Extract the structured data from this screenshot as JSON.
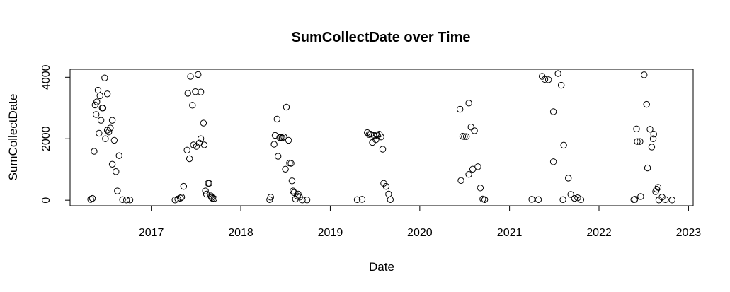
{
  "chart_data": {
    "type": "scatter",
    "title": "SumCollectDate over Time",
    "xlabel": "Date",
    "ylabel": "SumCollectDate",
    "xlim": [
      "2016-02-05",
      "2023-01-20"
    ],
    "ylim": [
      -180,
      4260
    ],
    "x_ticks": [
      "2017-01-01",
      "2018-01-01",
      "2019-01-01",
      "2020-01-01",
      "2021-01-01",
      "2022-01-01",
      "2023-01-01"
    ],
    "x_tick_labels": [
      "2017",
      "2018",
      "2019",
      "2020",
      "2021",
      "2022",
      "2023"
    ],
    "y_ticks": [
      0,
      2000,
      4000
    ],
    "y_tick_labels": [
      "0",
      "2000",
      "4000"
    ],
    "grid": false,
    "points": [
      [
        "2016-04-29",
        30
      ],
      [
        "2016-05-06",
        60
      ],
      [
        "2016-05-13",
        1590
      ],
      [
        "2016-05-17",
        3100
      ],
      [
        "2016-05-21",
        2790
      ],
      [
        "2016-05-24",
        3200
      ],
      [
        "2016-05-29",
        3580
      ],
      [
        "2016-06-02",
        2180
      ],
      [
        "2016-06-06",
        3400
      ],
      [
        "2016-06-10",
        2600
      ],
      [
        "2016-06-15",
        3000
      ],
      [
        "2016-06-18",
        3000
      ],
      [
        "2016-06-25",
        3980
      ],
      [
        "2016-06-28",
        2000
      ],
      [
        "2016-07-06",
        3460
      ],
      [
        "2016-07-06",
        2280
      ],
      [
        "2016-07-12",
        2220
      ],
      [
        "2016-07-18",
        2350
      ],
      [
        "2016-07-26",
        2600
      ],
      [
        "2016-07-26",
        1170
      ],
      [
        "2016-08-03",
        1950
      ],
      [
        "2016-08-10",
        930
      ],
      [
        "2016-08-16",
        300
      ],
      [
        "2016-08-23",
        1450
      ],
      [
        "2016-09-06",
        20
      ],
      [
        "2016-09-22",
        10
      ],
      [
        "2016-10-06",
        10
      ],
      [
        "2017-04-08",
        10
      ],
      [
        "2017-04-19",
        40
      ],
      [
        "2017-04-30",
        70
      ],
      [
        "2017-05-05",
        100
      ],
      [
        "2017-05-13",
        450
      ],
      [
        "2017-05-27",
        1630
      ],
      [
        "2017-05-30",
        3480
      ],
      [
        "2017-06-06",
        1350
      ],
      [
        "2017-06-10",
        4030
      ],
      [
        "2017-06-18",
        3090
      ],
      [
        "2017-06-22",
        1800
      ],
      [
        "2017-06-30",
        3530
      ],
      [
        "2017-07-04",
        1750
      ],
      [
        "2017-07-11",
        4090
      ],
      [
        "2017-07-16",
        1860
      ],
      [
        "2017-07-22",
        3520
      ],
      [
        "2017-07-22",
        2000
      ],
      [
        "2017-08-02",
        2510
      ],
      [
        "2017-08-05",
        1800
      ],
      [
        "2017-08-10",
        300
      ],
      [
        "2017-08-14",
        200
      ],
      [
        "2017-08-21",
        550
      ],
      [
        "2017-08-25",
        550
      ],
      [
        "2017-09-01",
        140
      ],
      [
        "2017-09-04",
        90
      ],
      [
        "2017-09-08",
        60
      ],
      [
        "2017-09-14",
        50
      ],
      [
        "2018-04-29",
        20
      ],
      [
        "2018-05-03",
        100
      ],
      [
        "2018-05-17",
        1820
      ],
      [
        "2018-05-21",
        2110
      ],
      [
        "2018-05-29",
        2640
      ],
      [
        "2018-06-02",
        1430
      ],
      [
        "2018-06-09",
        2040
      ],
      [
        "2018-06-14",
        2050
      ],
      [
        "2018-06-19",
        2030
      ],
      [
        "2018-06-26",
        2060
      ],
      [
        "2018-07-02",
        1010
      ],
      [
        "2018-07-06",
        3030
      ],
      [
        "2018-07-15",
        1950
      ],
      [
        "2018-07-19",
        1210
      ],
      [
        "2018-07-25",
        1200
      ],
      [
        "2018-07-29",
        630
      ],
      [
        "2018-08-02",
        300
      ],
      [
        "2018-08-06",
        250
      ],
      [
        "2018-08-12",
        40
      ],
      [
        "2018-08-19",
        140
      ],
      [
        "2018-08-23",
        200
      ],
      [
        "2018-08-29",
        100
      ],
      [
        "2018-09-09",
        10
      ],
      [
        "2018-09-28",
        10
      ],
      [
        "2019-04-21",
        20
      ],
      [
        "2019-05-11",
        30
      ],
      [
        "2019-06-01",
        2200
      ],
      [
        "2019-06-08",
        2140
      ],
      [
        "2019-06-15",
        2150
      ],
      [
        "2019-06-22",
        1880
      ],
      [
        "2019-06-29",
        2110
      ],
      [
        "2019-07-06",
        1970
      ],
      [
        "2019-07-10",
        2130
      ],
      [
        "2019-07-13",
        2100
      ],
      [
        "2019-07-20",
        2150
      ],
      [
        "2019-07-27",
        2060
      ],
      [
        "2019-08-03",
        1660
      ],
      [
        "2019-08-07",
        550
      ],
      [
        "2019-08-17",
        450
      ],
      [
        "2019-08-27",
        200
      ],
      [
        "2019-09-03",
        20
      ],
      [
        "2020-06-13",
        2960
      ],
      [
        "2020-06-17",
        640
      ],
      [
        "2020-06-24",
        2080
      ],
      [
        "2020-07-01",
        2070
      ],
      [
        "2020-07-09",
        2070
      ],
      [
        "2020-07-19",
        3160
      ],
      [
        "2020-07-19",
        840
      ],
      [
        "2020-07-28",
        2380
      ],
      [
        "2020-08-04",
        1010
      ],
      [
        "2020-08-11",
        2260
      ],
      [
        "2020-08-25",
        1090
      ],
      [
        "2020-09-04",
        400
      ],
      [
        "2020-09-14",
        40
      ],
      [
        "2020-09-22",
        20
      ],
      [
        "2021-04-02",
        30
      ],
      [
        "2021-04-29",
        20
      ],
      [
        "2021-05-14",
        4030
      ],
      [
        "2021-05-25",
        3930
      ],
      [
        "2021-06-09",
        3920
      ],
      [
        "2021-06-29",
        2880
      ],
      [
        "2021-06-29",
        1250
      ],
      [
        "2021-07-18",
        4120
      ],
      [
        "2021-07-31",
        3740
      ],
      [
        "2021-08-10",
        1790
      ],
      [
        "2021-08-07",
        20
      ],
      [
        "2021-08-29",
        720
      ],
      [
        "2021-09-08",
        190
      ],
      [
        "2021-09-23",
        60
      ],
      [
        "2021-10-06",
        80
      ],
      [
        "2021-10-19",
        20
      ],
      [
        "2022-05-23",
        20
      ],
      [
        "2022-05-27",
        30
      ],
      [
        "2022-06-03",
        2320
      ],
      [
        "2022-06-06",
        1910
      ],
      [
        "2022-06-17",
        1910
      ],
      [
        "2022-06-20",
        120
      ],
      [
        "2022-07-04",
        4080
      ],
      [
        "2022-07-14",
        3120
      ],
      [
        "2022-07-18",
        1050
      ],
      [
        "2022-07-28",
        2310
      ],
      [
        "2022-08-04",
        1730
      ],
      [
        "2022-08-10",
        2000
      ],
      [
        "2022-08-12",
        2150
      ],
      [
        "2022-08-20",
        280
      ],
      [
        "2022-08-24",
        360
      ],
      [
        "2022-08-30",
        420
      ],
      [
        "2022-09-02",
        10
      ],
      [
        "2022-09-15",
        100
      ],
      [
        "2022-09-29",
        20
      ],
      [
        "2022-10-26",
        10
      ]
    ]
  }
}
